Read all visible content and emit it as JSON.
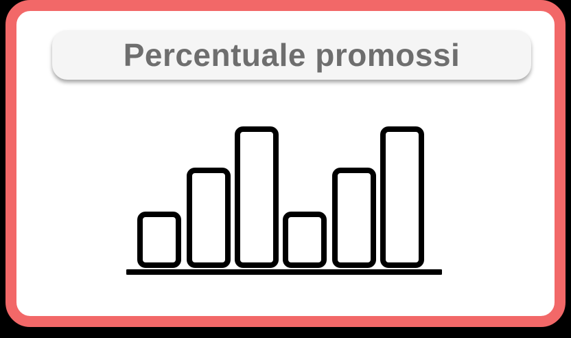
{
  "title": "Percentuale promossi",
  "icon": "bar-chart-icon",
  "colors": {
    "frame": "#f26868",
    "card": "#ffffff",
    "pill": "#f5f5f5",
    "title_text": "#6e6e6e",
    "icon_stroke": "#000000"
  }
}
